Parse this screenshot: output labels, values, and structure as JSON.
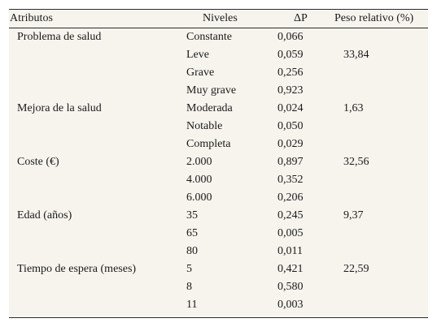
{
  "headers": {
    "attribute": "Atributos",
    "levels": "Niveles",
    "delta_p": "ΔP",
    "weight": "Peso relativo (%)"
  },
  "rows": [
    {
      "attribute": "Problema de salud",
      "level": "Constante",
      "dp": "0,066",
      "weight": ""
    },
    {
      "attribute": "",
      "level": "Leve",
      "dp": "0,059",
      "weight": "33,84"
    },
    {
      "attribute": "",
      "level": "Grave",
      "dp": "0,256",
      "weight": ""
    },
    {
      "attribute": "",
      "level": "Muy grave",
      "dp": "0,923",
      "weight": ""
    },
    {
      "attribute": "Mejora de la salud",
      "level": "Moderada",
      "dp": "0,024",
      "weight": "1,63"
    },
    {
      "attribute": "",
      "level": "Notable",
      "dp": "0,050",
      "weight": ""
    },
    {
      "attribute": "",
      "level": "Completa",
      "dp": "0,029",
      "weight": ""
    },
    {
      "attribute": "Coste (€)",
      "level": "2.000",
      "dp": "0,897",
      "weight": "32,56"
    },
    {
      "attribute": "",
      "level": "4.000",
      "dp": "0,352",
      "weight": ""
    },
    {
      "attribute": "",
      "level": "6.000",
      "dp": "0,206",
      "weight": ""
    },
    {
      "attribute": "Edad (años)",
      "level": "35",
      "dp": "0,245",
      "weight": "9,37"
    },
    {
      "attribute": "",
      "level": "65",
      "dp": "0,005",
      "weight": ""
    },
    {
      "attribute": "",
      "level": "80",
      "dp": "0,011",
      "weight": ""
    },
    {
      "attribute": "Tiempo de espera (meses)",
      "level": "5",
      "dp": "0,421",
      "weight": "22,59"
    },
    {
      "attribute": "",
      "level": "8",
      "dp": "0,580",
      "weight": ""
    },
    {
      "attribute": "",
      "level": "11",
      "dp": "0,003",
      "weight": ""
    }
  ]
}
